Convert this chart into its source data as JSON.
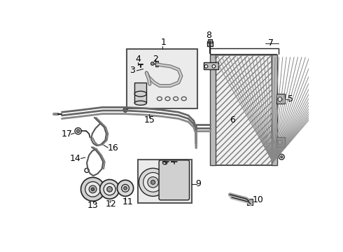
{
  "bg_color": "#ffffff",
  "label_color": "#000000",
  "line_color": "#222222",
  "gray_fill": "#e8e8e8",
  "dark_gray": "#555555",
  "condenser_hatch_color": "#777777"
}
